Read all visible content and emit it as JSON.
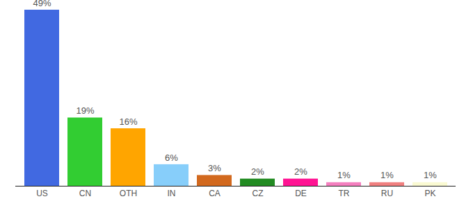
{
  "chart_data": {
    "type": "bar",
    "categories": [
      "US",
      "CN",
      "OTH",
      "IN",
      "CA",
      "CZ",
      "DE",
      "TR",
      "RU",
      "PK"
    ],
    "values": [
      49,
      19,
      16,
      6,
      3,
      2,
      2,
      1,
      1,
      1
    ],
    "value_labels": [
      "49%",
      "19%",
      "16%",
      "6%",
      "3%",
      "2%",
      "2%",
      "1%",
      "1%",
      "1%"
    ],
    "colors": [
      "#4169e1",
      "#32cd32",
      "#ffa500",
      "#87cefa",
      "#d2691e",
      "#228b22",
      "#ff1493",
      "#f47fbf",
      "#f08080",
      "#fafad2"
    ],
    "ylim": [
      0,
      49
    ],
    "yticks": [],
    "data_labels": true,
    "tick_labels": "x",
    "grid": false
  }
}
